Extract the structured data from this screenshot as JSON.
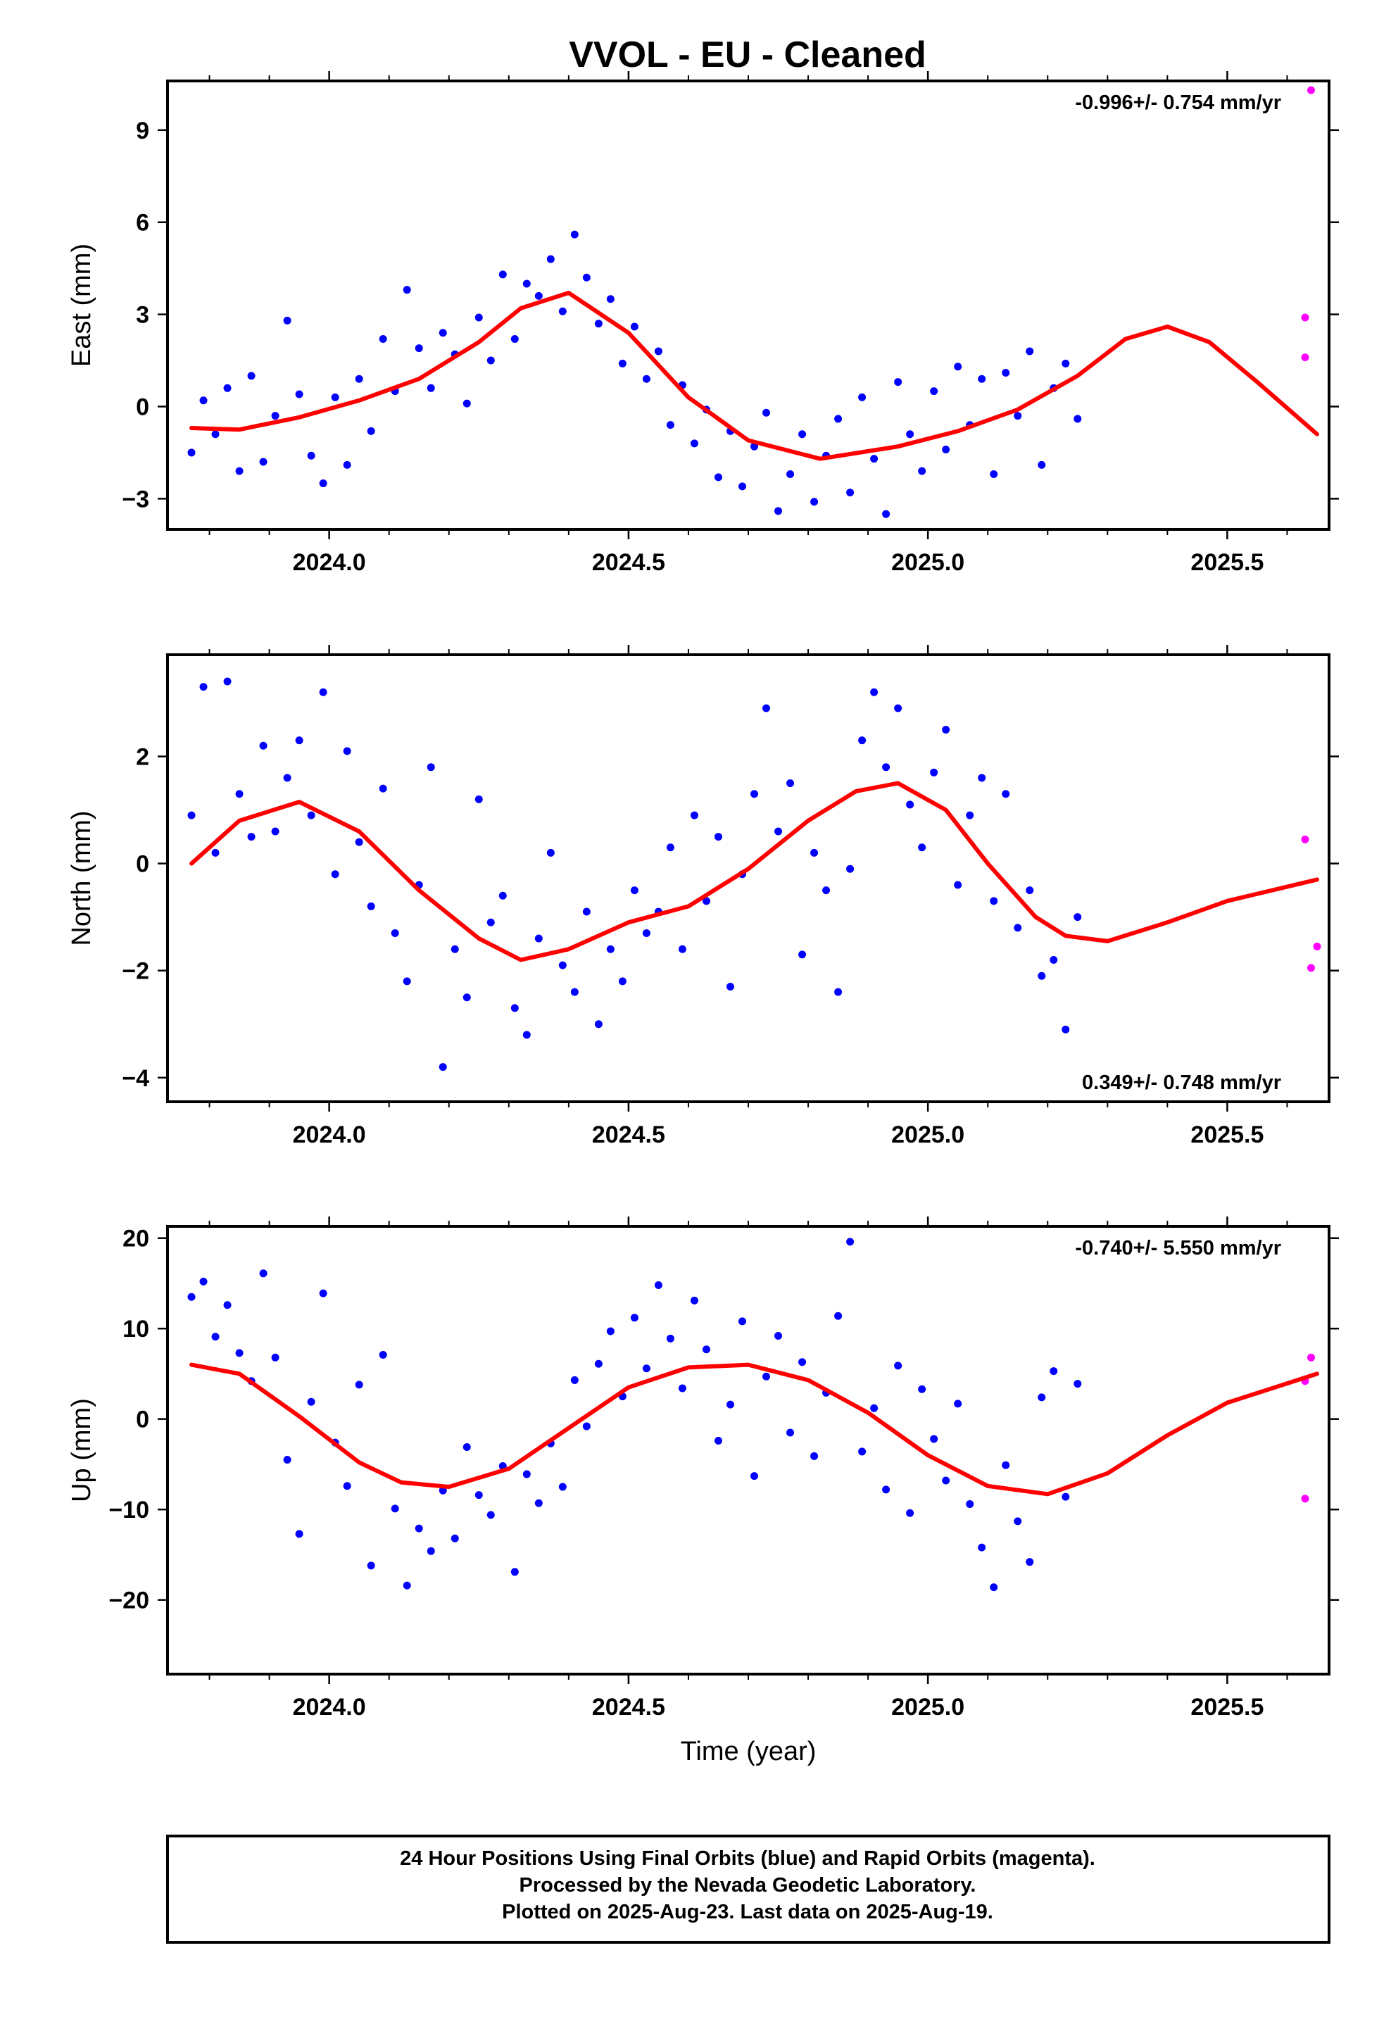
{
  "page_title": "VVOL  - EU - Cleaned",
  "footer": {
    "line1": "24 Hour Positions Using Final Orbits (blue) and Rapid Orbits (magenta).",
    "line2": "Processed by the Nevada Geodetic Laboratory.",
    "line3": "Plotted on 2025-Aug-23. Last data on 2025-Aug-19."
  },
  "colors": {
    "final": "#0000ff",
    "rapid": "#ff00ff",
    "fit": "#ff0000",
    "frame": "#000000"
  },
  "chart_data": [
    {
      "type": "scatter",
      "ylabel": "East (mm)",
      "xlabel": "",
      "rate_text": "-0.996+/- 0.754 mm/yr",
      "rate_position": "top-right",
      "xlim": [
        2023.73,
        2025.67
      ],
      "ylim": [
        -4.0,
        10.6
      ],
      "xticks": [
        2024.0,
        2024.5,
        2025.0,
        2025.5
      ],
      "xtick_labels": [
        "2024.0",
        "2024.5",
        "2025.0",
        "2025.5"
      ],
      "yticks": [
        -3,
        0,
        3,
        6,
        9
      ],
      "ytick_labels": [
        "−3",
        "0",
        "3",
        "6",
        "9"
      ],
      "final_orbits": {
        "x": [
          2023.77,
          2023.79,
          2023.81,
          2023.83,
          2023.85,
          2023.87,
          2023.89,
          2023.91,
          2023.93,
          2023.95,
          2023.97,
          2023.99,
          2024.01,
          2024.03,
          2024.05,
          2024.07,
          2024.09,
          2024.11,
          2024.13,
          2024.15,
          2024.17,
          2024.19,
          2024.21,
          2024.23,
          2024.25,
          2024.27,
          2024.29,
          2024.31,
          2024.33,
          2024.35,
          2024.37,
          2024.39,
          2024.41,
          2024.43,
          2024.45,
          2024.47,
          2024.49,
          2024.51,
          2024.53,
          2024.55,
          2024.57,
          2024.59,
          2024.61,
          2024.63,
          2024.65,
          2024.67,
          2024.69,
          2024.71,
          2024.73,
          2024.75,
          2024.77,
          2024.79,
          2024.81,
          2024.83,
          2024.85,
          2024.87,
          2024.89,
          2024.91,
          2024.93,
          2024.95,
          2024.97,
          2024.99,
          2025.01,
          2025.03,
          2025.05,
          2025.07,
          2025.09,
          2025.11,
          2025.13,
          2025.15,
          2025.17,
          2025.19,
          2025.21,
          2025.23,
          2025.25
        ],
        "y": [
          -1.5,
          0.2,
          -0.9,
          0.6,
          -2.1,
          1.0,
          -1.8,
          -0.3,
          2.8,
          0.4,
          -1.6,
          -2.5,
          0.3,
          -1.9,
          0.9,
          -0.8,
          2.2,
          0.5,
          3.8,
          1.9,
          0.6,
          2.4,
          1.7,
          0.1,
          2.9,
          1.5,
          4.3,
          2.2,
          4.0,
          3.6,
          4.8,
          3.1,
          5.6,
          4.2,
          2.7,
          3.5,
          1.4,
          2.6,
          0.9,
          1.8,
          -0.6,
          0.7,
          -1.2,
          -0.1,
          -2.3,
          -0.8,
          -2.6,
          -1.3,
          -0.2,
          -3.4,
          -2.2,
          -0.9,
          -3.1,
          -1.6,
          -0.4,
          -2.8,
          0.3,
          -1.7,
          -3.5,
          0.8,
          -0.9,
          -2.1,
          0.5,
          -1.4,
          1.3,
          -0.6,
          0.9,
          -2.2,
          1.1,
          -0.3,
          1.8,
          -1.9,
          0.6,
          1.4,
          -0.4
        ]
      },
      "rapid_orbits": {
        "x": [
          2025.63,
          2025.63,
          2025.64
        ],
        "y": [
          2.9,
          1.6,
          10.3
        ]
      },
      "fit": {
        "x": [
          2023.77,
          2023.85,
          2023.95,
          2024.05,
          2024.15,
          2024.25,
          2024.32,
          2024.4,
          2024.5,
          2024.6,
          2024.7,
          2024.82,
          2024.95,
          2025.05,
          2025.15,
          2025.25,
          2025.33,
          2025.4,
          2025.47,
          2025.55,
          2025.65
        ],
        "y": [
          -0.7,
          -0.75,
          -0.35,
          0.2,
          0.9,
          2.1,
          3.2,
          3.7,
          2.4,
          0.3,
          -1.1,
          -1.7,
          -1.3,
          -0.8,
          -0.1,
          1.0,
          2.2,
          2.6,
          2.1,
          0.8,
          -0.9
        ]
      }
    },
    {
      "type": "scatter",
      "ylabel": "North (mm)",
      "xlabel": "",
      "rate_text": "0.349+/- 0.748 mm/yr",
      "rate_position": "bottom-right",
      "xlim": [
        2023.73,
        2025.67
      ],
      "ylim": [
        -4.45,
        3.9
      ],
      "xticks": [
        2024.0,
        2024.5,
        2025.0,
        2025.5
      ],
      "xtick_labels": [
        "2024.0",
        "2024.5",
        "2025.0",
        "2025.5"
      ],
      "yticks": [
        -4,
        -2,
        0,
        2
      ],
      "ytick_labels": [
        "−4",
        "−2",
        "0",
        "2"
      ],
      "final_orbits": {
        "x": [
          2023.77,
          2023.79,
          2023.81,
          2023.83,
          2023.85,
          2023.87,
          2023.89,
          2023.91,
          2023.93,
          2023.95,
          2023.97,
          2023.99,
          2024.01,
          2024.03,
          2024.05,
          2024.07,
          2024.09,
          2024.11,
          2024.13,
          2024.15,
          2024.17,
          2024.19,
          2024.21,
          2024.23,
          2024.25,
          2024.27,
          2024.29,
          2024.31,
          2024.33,
          2024.35,
          2024.37,
          2024.39,
          2024.41,
          2024.43,
          2024.45,
          2024.47,
          2024.49,
          2024.51,
          2024.53,
          2024.55,
          2024.57,
          2024.59,
          2024.61,
          2024.63,
          2024.65,
          2024.67,
          2024.69,
          2024.71,
          2024.73,
          2024.75,
          2024.77,
          2024.79,
          2024.81,
          2024.83,
          2024.85,
          2024.87,
          2024.89,
          2024.91,
          2024.93,
          2024.95,
          2024.97,
          2024.99,
          2025.01,
          2025.03,
          2025.05,
          2025.07,
          2025.09,
          2025.11,
          2025.13,
          2025.15,
          2025.17,
          2025.19,
          2025.21,
          2025.23,
          2025.25
        ],
        "y": [
          0.9,
          3.3,
          0.2,
          3.4,
          1.3,
          0.5,
          2.2,
          0.6,
          1.6,
          2.3,
          0.9,
          3.2,
          -0.2,
          2.1,
          0.4,
          -0.8,
          1.4,
          -1.3,
          -2.2,
          -0.4,
          1.8,
          -3.8,
          -1.6,
          -2.5,
          1.2,
          -1.1,
          -0.6,
          -2.7,
          -3.2,
          -1.4,
          0.2,
          -1.9,
          -2.4,
          -0.9,
          -3.0,
          -1.6,
          -2.2,
          -0.5,
          -1.3,
          -0.9,
          0.3,
          -1.6,
          0.9,
          -0.7,
          0.5,
          -2.3,
          -0.2,
          1.3,
          2.9,
          0.6,
          1.5,
          -1.7,
          0.2,
          -0.5,
          -2.4,
          -0.1,
          2.3,
          3.2,
          1.8,
          2.9,
          1.1,
          0.3,
          1.7,
          2.5,
          -0.4,
          0.9,
          1.6,
          -0.7,
          1.3,
          -1.2,
          -0.5,
          -2.1,
          -1.8,
          -3.1,
          -1.0
        ]
      },
      "rapid_orbits": {
        "x": [
          2025.63,
          2025.64,
          2025.65
        ],
        "y": [
          0.45,
          -1.95,
          -1.55
        ]
      },
      "fit": {
        "x": [
          2023.77,
          2023.85,
          2023.95,
          2024.05,
          2024.15,
          2024.25,
          2024.32,
          2024.4,
          2024.5,
          2024.6,
          2024.7,
          2024.8,
          2024.88,
          2024.95,
          2025.03,
          2025.1,
          2025.18,
          2025.23,
          2025.3,
          2025.4,
          2025.5,
          2025.65
        ],
        "y": [
          0.0,
          0.8,
          1.15,
          0.6,
          -0.5,
          -1.4,
          -1.8,
          -1.6,
          -1.1,
          -0.8,
          -0.1,
          0.8,
          1.35,
          1.5,
          1.0,
          0.0,
          -1.0,
          -1.35,
          -1.45,
          -1.1,
          -0.7,
          -0.3
        ]
      }
    },
    {
      "type": "scatter",
      "ylabel": "Up (mm)",
      "xlabel": "Time (year)",
      "rate_text": "-0.740+/- 5.550 mm/yr",
      "rate_position": "top-right",
      "xlim": [
        2023.73,
        2025.67
      ],
      "ylim": [
        -28.2,
        21.3
      ],
      "xticks": [
        2024.0,
        2024.5,
        2025.0,
        2025.5
      ],
      "xtick_labels": [
        "2024.0",
        "2024.5",
        "2025.0",
        "2025.5"
      ],
      "yticks": [
        -20,
        -10,
        0,
        10,
        20
      ],
      "ytick_labels": [
        "−20",
        "−10",
        "0",
        "10",
        "20"
      ],
      "final_orbits": {
        "x": [
          2023.77,
          2023.79,
          2023.81,
          2023.83,
          2023.85,
          2023.87,
          2023.89,
          2023.91,
          2023.93,
          2023.95,
          2023.97,
          2023.99,
          2024.01,
          2024.03,
          2024.05,
          2024.07,
          2024.09,
          2024.11,
          2024.13,
          2024.15,
          2024.17,
          2024.19,
          2024.21,
          2024.23,
          2024.25,
          2024.27,
          2024.29,
          2024.31,
          2024.33,
          2024.35,
          2024.37,
          2024.39,
          2024.41,
          2024.43,
          2024.45,
          2024.47,
          2024.49,
          2024.51,
          2024.53,
          2024.55,
          2024.57,
          2024.59,
          2024.61,
          2024.63,
          2024.65,
          2024.67,
          2024.69,
          2024.71,
          2024.73,
          2024.75,
          2024.77,
          2024.79,
          2024.81,
          2024.83,
          2024.85,
          2024.87,
          2024.89,
          2024.91,
          2024.93,
          2024.95,
          2024.97,
          2024.99,
          2025.01,
          2025.03,
          2025.05,
          2025.07,
          2025.09,
          2025.11,
          2025.13,
          2025.15,
          2025.17,
          2025.19,
          2025.21,
          2025.23,
          2025.25
        ],
        "y": [
          13.5,
          15.2,
          9.1,
          12.6,
          7.3,
          4.2,
          16.1,
          6.8,
          -4.5,
          -12.7,
          1.9,
          13.9,
          -2.6,
          -7.4,
          3.8,
          -16.2,
          7.1,
          -9.9,
          -18.4,
          -12.1,
          -14.6,
          -7.9,
          -13.2,
          -3.1,
          -8.4,
          -10.6,
          -5.2,
          -16.9,
          -6.1,
          -9.3,
          -2.7,
          -7.5,
          4.3,
          -0.8,
          6.1,
          9.7,
          2.5,
          11.2,
          5.6,
          14.8,
          8.9,
          3.4,
          13.1,
          7.7,
          -2.4,
          1.6,
          10.8,
          -6.3,
          4.7,
          9.2,
          -1.5,
          6.3,
          -4.1,
          2.9,
          11.4,
          19.6,
          -3.6,
          1.2,
          -7.8,
          5.9,
          -10.4,
          3.3,
          -2.2,
          -6.8,
          1.7,
          -9.4,
          -14.2,
          -18.6,
          -5.1,
          -11.3,
          -15.8,
          2.4,
          5.3,
          -8.6,
          3.9
        ]
      },
      "rapid_orbits": {
        "x": [
          2025.63,
          2025.63,
          2025.64
        ],
        "y": [
          4.2,
          -8.8,
          6.8
        ]
      },
      "fit": {
        "x": [
          2023.77,
          2023.85,
          2023.95,
          2024.05,
          2024.12,
          2024.2,
          2024.3,
          2024.4,
          2024.5,
          2024.6,
          2024.7,
          2024.8,
          2024.9,
          2025.0,
          2025.1,
          2025.2,
          2025.3,
          2025.4,
          2025.5,
          2025.65
        ],
        "y": [
          6.0,
          5.0,
          0.3,
          -4.8,
          -7.0,
          -7.5,
          -5.5,
          -1.0,
          3.5,
          5.7,
          6.0,
          4.3,
          0.7,
          -4.0,
          -7.4,
          -8.3,
          -6.0,
          -1.8,
          1.8,
          5.0
        ]
      }
    }
  ]
}
